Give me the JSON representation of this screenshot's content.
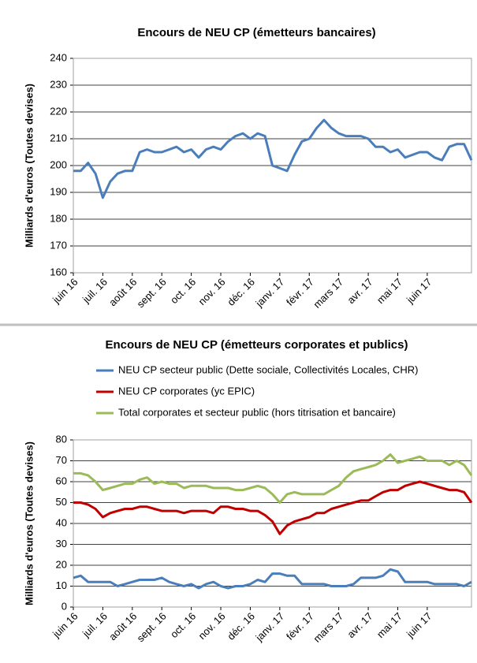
{
  "chart_data": [
    {
      "type": "line",
      "title": "Encours de NEU CP (émetteurs bancaires)",
      "y_label": "Milliards d'euros (Toutes devises)",
      "categories": [
        "juin 16",
        null,
        null,
        null,
        "juil. 16",
        null,
        null,
        null,
        "août 16",
        null,
        null,
        null,
        "sept. 16",
        null,
        null,
        null,
        "oct. 16",
        null,
        null,
        null,
        "nov. 16",
        null,
        null,
        null,
        "déc. 16",
        null,
        null,
        null,
        "janv. 17",
        null,
        null,
        null,
        "févr. 17",
        null,
        null,
        null,
        "mars 17",
        null,
        null,
        null,
        "avr. 17",
        null,
        null,
        null,
        "mai 17",
        null,
        null,
        null,
        "juin 17",
        null,
        null,
        null,
        null,
        null,
        null
      ],
      "series": [
        {
          "name": null,
          "color": "#4a7ebb",
          "values": [
            198,
            198,
            201,
            197,
            188,
            194,
            197,
            198,
            198,
            205,
            206,
            205,
            205,
            206,
            207,
            205,
            206,
            203,
            206,
            207,
            206,
            209,
            211,
            212,
            210,
            212,
            211,
            200,
            199,
            198,
            204,
            209,
            210,
            214,
            217,
            214,
            212,
            211,
            211,
            211,
            210,
            207,
            207,
            205,
            206,
            203,
            204,
            205,
            205,
            203,
            202,
            207,
            208,
            208,
            202
          ]
        }
      ],
      "ylim": [
        160,
        240
      ],
      "yticks": [
        160,
        170,
        180,
        190,
        200,
        210,
        220,
        230,
        240
      ],
      "grid": true
    },
    {
      "type": "line",
      "title": "Encours de NEU CP (émetteurs  corporates et publics)",
      "y_label": "Milliards  d'euros (Toutes devises)",
      "categories": [
        "juin 16",
        null,
        null,
        null,
        "juil. 16",
        null,
        null,
        null,
        "août 16",
        null,
        null,
        null,
        "sept. 16",
        null,
        null,
        null,
        "oct. 16",
        null,
        null,
        null,
        "nov. 16",
        null,
        null,
        null,
        "déc. 16",
        null,
        null,
        null,
        "janv. 17",
        null,
        null,
        null,
        "févr. 17",
        null,
        null,
        null,
        "mars 17",
        null,
        null,
        null,
        "avr. 17",
        null,
        null,
        null,
        "mai 17",
        null,
        null,
        null,
        "juin 17",
        null,
        null,
        null,
        null,
        null,
        null
      ],
      "series": [
        {
          "name": "NEU CP secteur public (Dette sociale, Collectivités Locales, CHR)",
          "color": "#4a7ebb",
          "values": [
            14,
            15,
            12,
            12,
            12,
            12,
            10,
            11,
            12,
            13,
            13,
            13,
            14,
            12,
            11,
            10,
            11,
            9,
            11,
            12,
            10,
            9,
            10,
            10,
            11,
            13,
            12,
            16,
            16,
            15,
            15,
            11,
            11,
            11,
            11,
            10,
            10,
            10,
            11,
            14,
            14,
            14,
            15,
            18,
            17,
            12,
            12,
            12,
            12,
            11,
            11,
            11,
            11,
            10,
            12
          ]
        },
        {
          "name": "NEU CP corporates (yc EPIC)",
          "color": "#c00000",
          "values": [
            50,
            50,
            49,
            47,
            43,
            45,
            46,
            47,
            47,
            48,
            48,
            47,
            46,
            46,
            46,
            45,
            46,
            46,
            46,
            45,
            48,
            48,
            47,
            47,
            46,
            46,
            44,
            41,
            35,
            39,
            41,
            42,
            43,
            45,
            45,
            47,
            48,
            49,
            50,
            51,
            51,
            53,
            55,
            56,
            56,
            58,
            59,
            60,
            59,
            58,
            57,
            56,
            56,
            55,
            50
          ]
        },
        {
          "name": "Total corporates et secteur public (hors titrisation et bancaire)",
          "color": "#9bbb59",
          "values": [
            64,
            64,
            63,
            60,
            56,
            57,
            58,
            59,
            59,
            61,
            62,
            59,
            60,
            59,
            59,
            57,
            58,
            58,
            58,
            57,
            57,
            57,
            56,
            56,
            57,
            58,
            57,
            54,
            50,
            54,
            55,
            54,
            54,
            54,
            54,
            56,
            58,
            62,
            65,
            66,
            67,
            68,
            70,
            73,
            69,
            70,
            71,
            72,
            70,
            70,
            70,
            68,
            70,
            68,
            63
          ]
        }
      ],
      "ylim": [
        0,
        80
      ],
      "yticks": [
        0,
        10,
        20,
        30,
        40,
        50,
        60,
        70,
        80
      ],
      "grid": true
    }
  ]
}
